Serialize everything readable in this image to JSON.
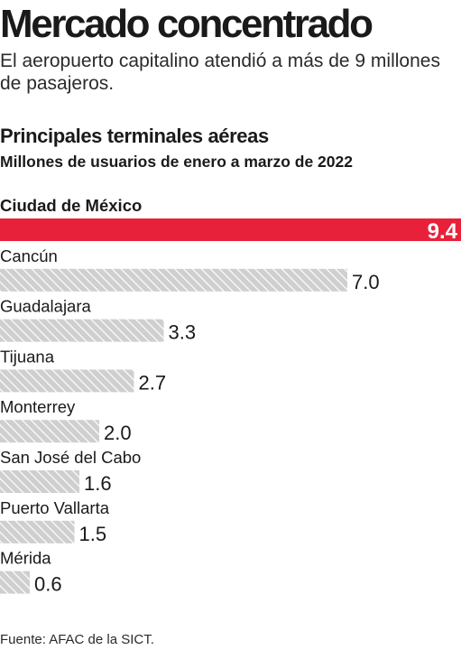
{
  "header": {
    "title": "Mercado concentrado",
    "subtitle": "El aeropuerto capitalino atendió a más de 9 millones de pasajeros."
  },
  "footer": {
    "source": "Fuente: AFAC de la SICT."
  },
  "colors": {
    "highlight": "#e8213a",
    "bar_fill": "#cfcfcf",
    "bar_hatch": "#ffffff",
    "text": "#1a1a1a"
  },
  "chart_data": {
    "type": "bar",
    "orientation": "horizontal",
    "title": "Principales terminales aéreas",
    "subtitle": "Millones de usuarios de enero a marzo de 2022",
    "categories": [
      "Ciudad de México",
      "Cancún",
      "Guadalajara",
      "Tijuana",
      "Monterrey",
      "San José del Cabo",
      "Puerto Vallarta",
      "Mérida"
    ],
    "values": [
      9.4,
      7.0,
      3.3,
      2.7,
      2.0,
      1.6,
      1.5,
      0.6
    ],
    "value_labels": [
      "9.4",
      "7.0",
      "3.3",
      "2.7",
      "2.0",
      "1.6",
      "1.5",
      "0.6"
    ],
    "highlighted_index": 0,
    "xlim": [
      0,
      9.4
    ],
    "grid": false,
    "legend": "none"
  }
}
